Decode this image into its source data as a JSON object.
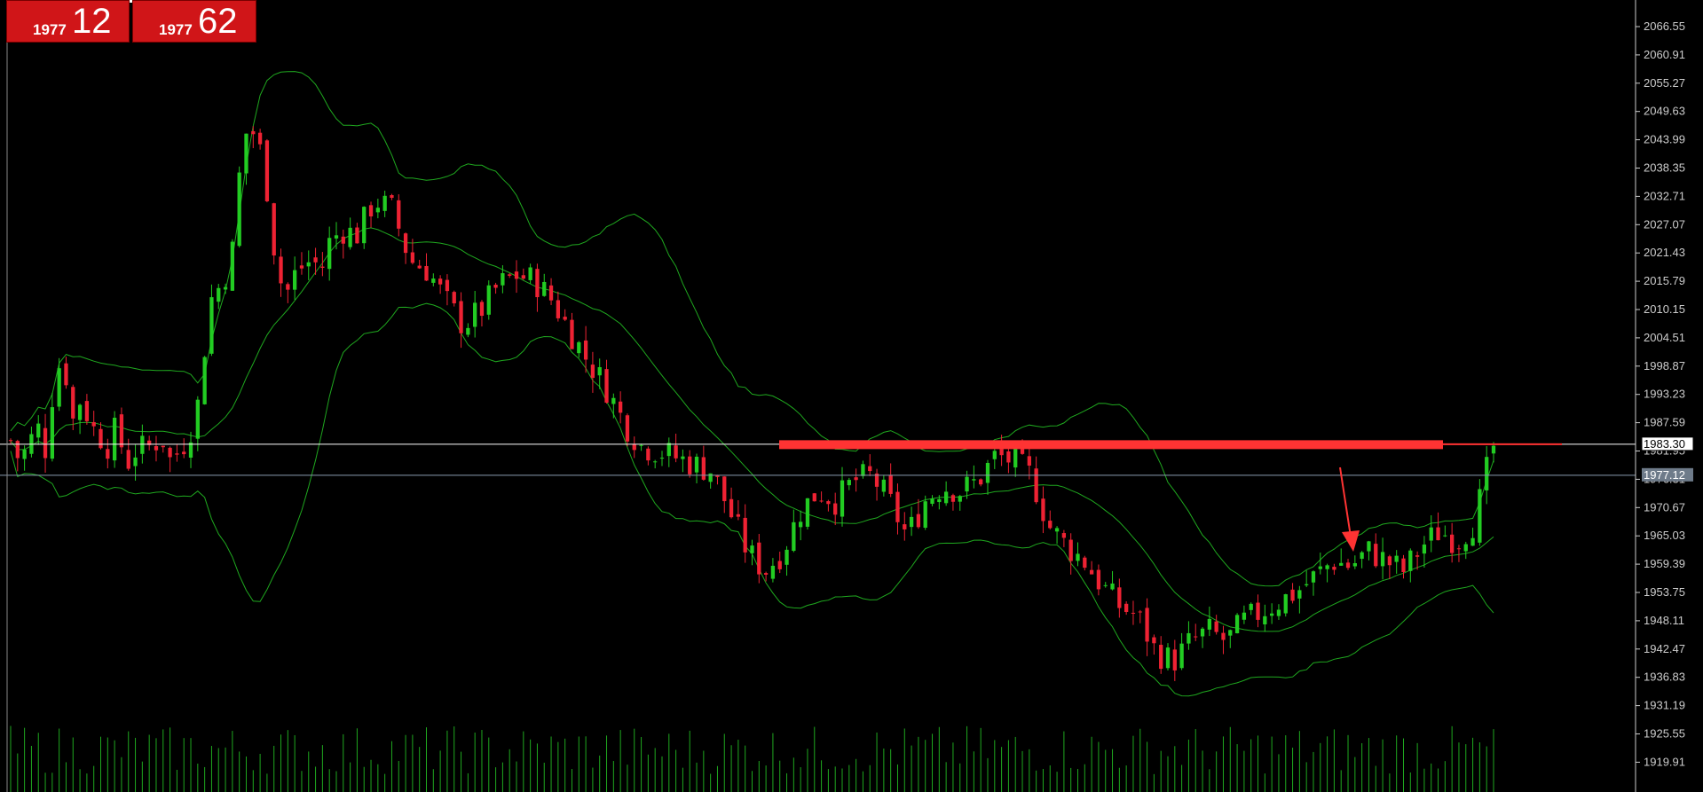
{
  "quote_panel": {
    "bid_prefix": "1977",
    "bid_points": "12",
    "ask_prefix": "1977",
    "ask_points": "62"
  },
  "colors": {
    "background": "#000000",
    "bull_candle": "#22cc22",
    "bear_candle": "#ee2233",
    "bands": "#1fa81f",
    "resistance": "#ff3333",
    "axis_text": "#cccccc"
  },
  "chart_data": {
    "type": "candlestick",
    "y_axis_ticks": [
      "2066.55",
      "2060.91",
      "2055.27",
      "2049.63",
      "2043.99",
      "2038.35",
      "2032.71",
      "2027.07",
      "2021.43",
      "2015.79",
      "2010.15",
      "2004.51",
      "1998.87",
      "1993.23",
      "1987.59",
      "1981.95",
      "1976.31",
      "1970.67",
      "1965.03",
      "1959.39",
      "1953.75",
      "1948.11",
      "1942.47",
      "1936.83",
      "1931.19",
      "1925.55",
      "1919.91"
    ],
    "ylim": [
      1917,
      2073
    ],
    "price_labels": [
      {
        "label": "1983.30",
        "value": 1983.3,
        "style": "resistance"
      },
      {
        "label": "1977.12",
        "value": 1977.12,
        "style": "bid"
      }
    ],
    "resistance_level": 1983.3,
    "annotation": "down-arrow",
    "indicator": "Bollinger Bands",
    "num_bars": 215,
    "volume": true
  }
}
